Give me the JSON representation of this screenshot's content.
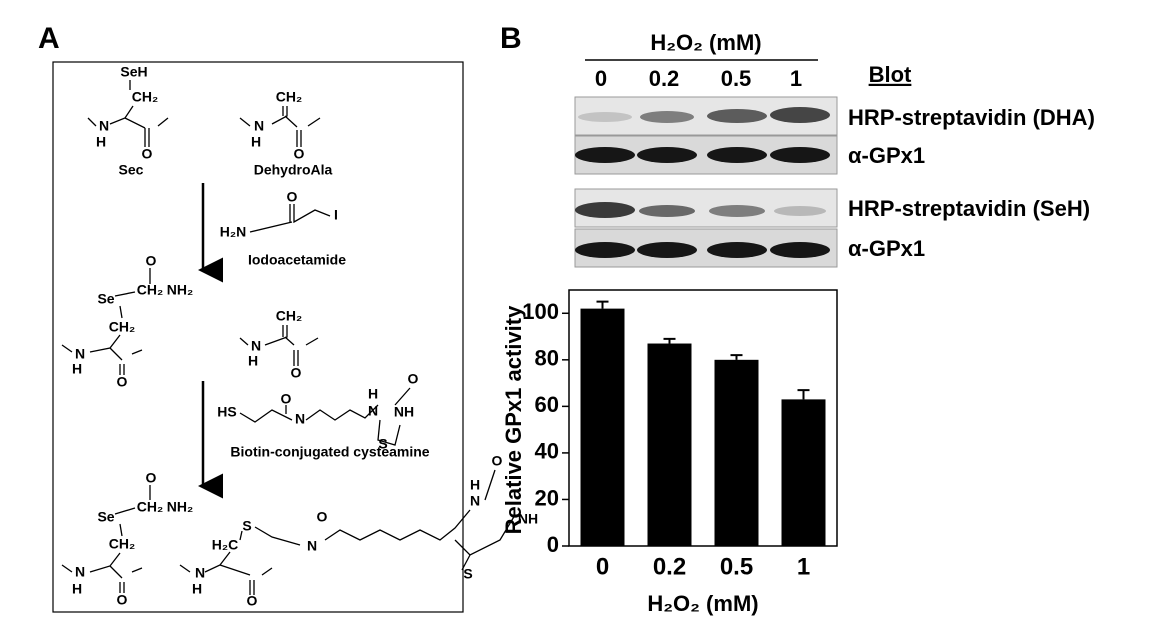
{
  "panel_a": {
    "letter": "A",
    "names": [
      "Sec",
      "DehydroAla",
      "Iodoacetamide",
      "Biotin-conjugated cysteamine"
    ],
    "atoms": [
      "SeH",
      "CH₂",
      "N",
      "H",
      "O",
      "CH₂",
      "N",
      "H",
      "O",
      "O",
      "H₂N",
      "I",
      "Se",
      "CH₂",
      "NH₂",
      "O",
      "CH₂",
      "N",
      "H",
      "O",
      "CH₂",
      "N",
      "H",
      "O",
      "HS",
      "N",
      "O",
      "O",
      "H",
      "N",
      "NH",
      "S",
      "Se",
      "CH₂",
      "NH₂",
      "O",
      "CH₂",
      "N",
      "H",
      "O",
      "S",
      "H₂C",
      "N",
      "H",
      "O",
      "N",
      "O",
      "O",
      "H",
      "N",
      "NH",
      "S"
    ]
  },
  "panel_b": {
    "letter": "B",
    "treatment": "H₂O₂ (mM)",
    "lanes": [
      "0",
      "0.2",
      "0.5",
      "1"
    ],
    "blot_header": "Blot",
    "blots": [
      "HRP-streptavidin (DHA)",
      "α-GPx1",
      "HRP-streptavidin (SeH)",
      "α-GPx1"
    ]
  },
  "chart_data": {
    "type": "bar",
    "categories": [
      "0",
      "0.2",
      "0.5",
      "1"
    ],
    "values": [
      102,
      87,
      80,
      63
    ],
    "errors": [
      3,
      2,
      2,
      4
    ],
    "color": "#000000",
    "xlabel": "H₂O₂ (mM)",
    "ylabel": "Relative GPx1 activity",
    "ylim": [
      0,
      110
    ],
    "yticks": [
      0,
      20,
      40,
      60,
      80,
      100
    ]
  }
}
